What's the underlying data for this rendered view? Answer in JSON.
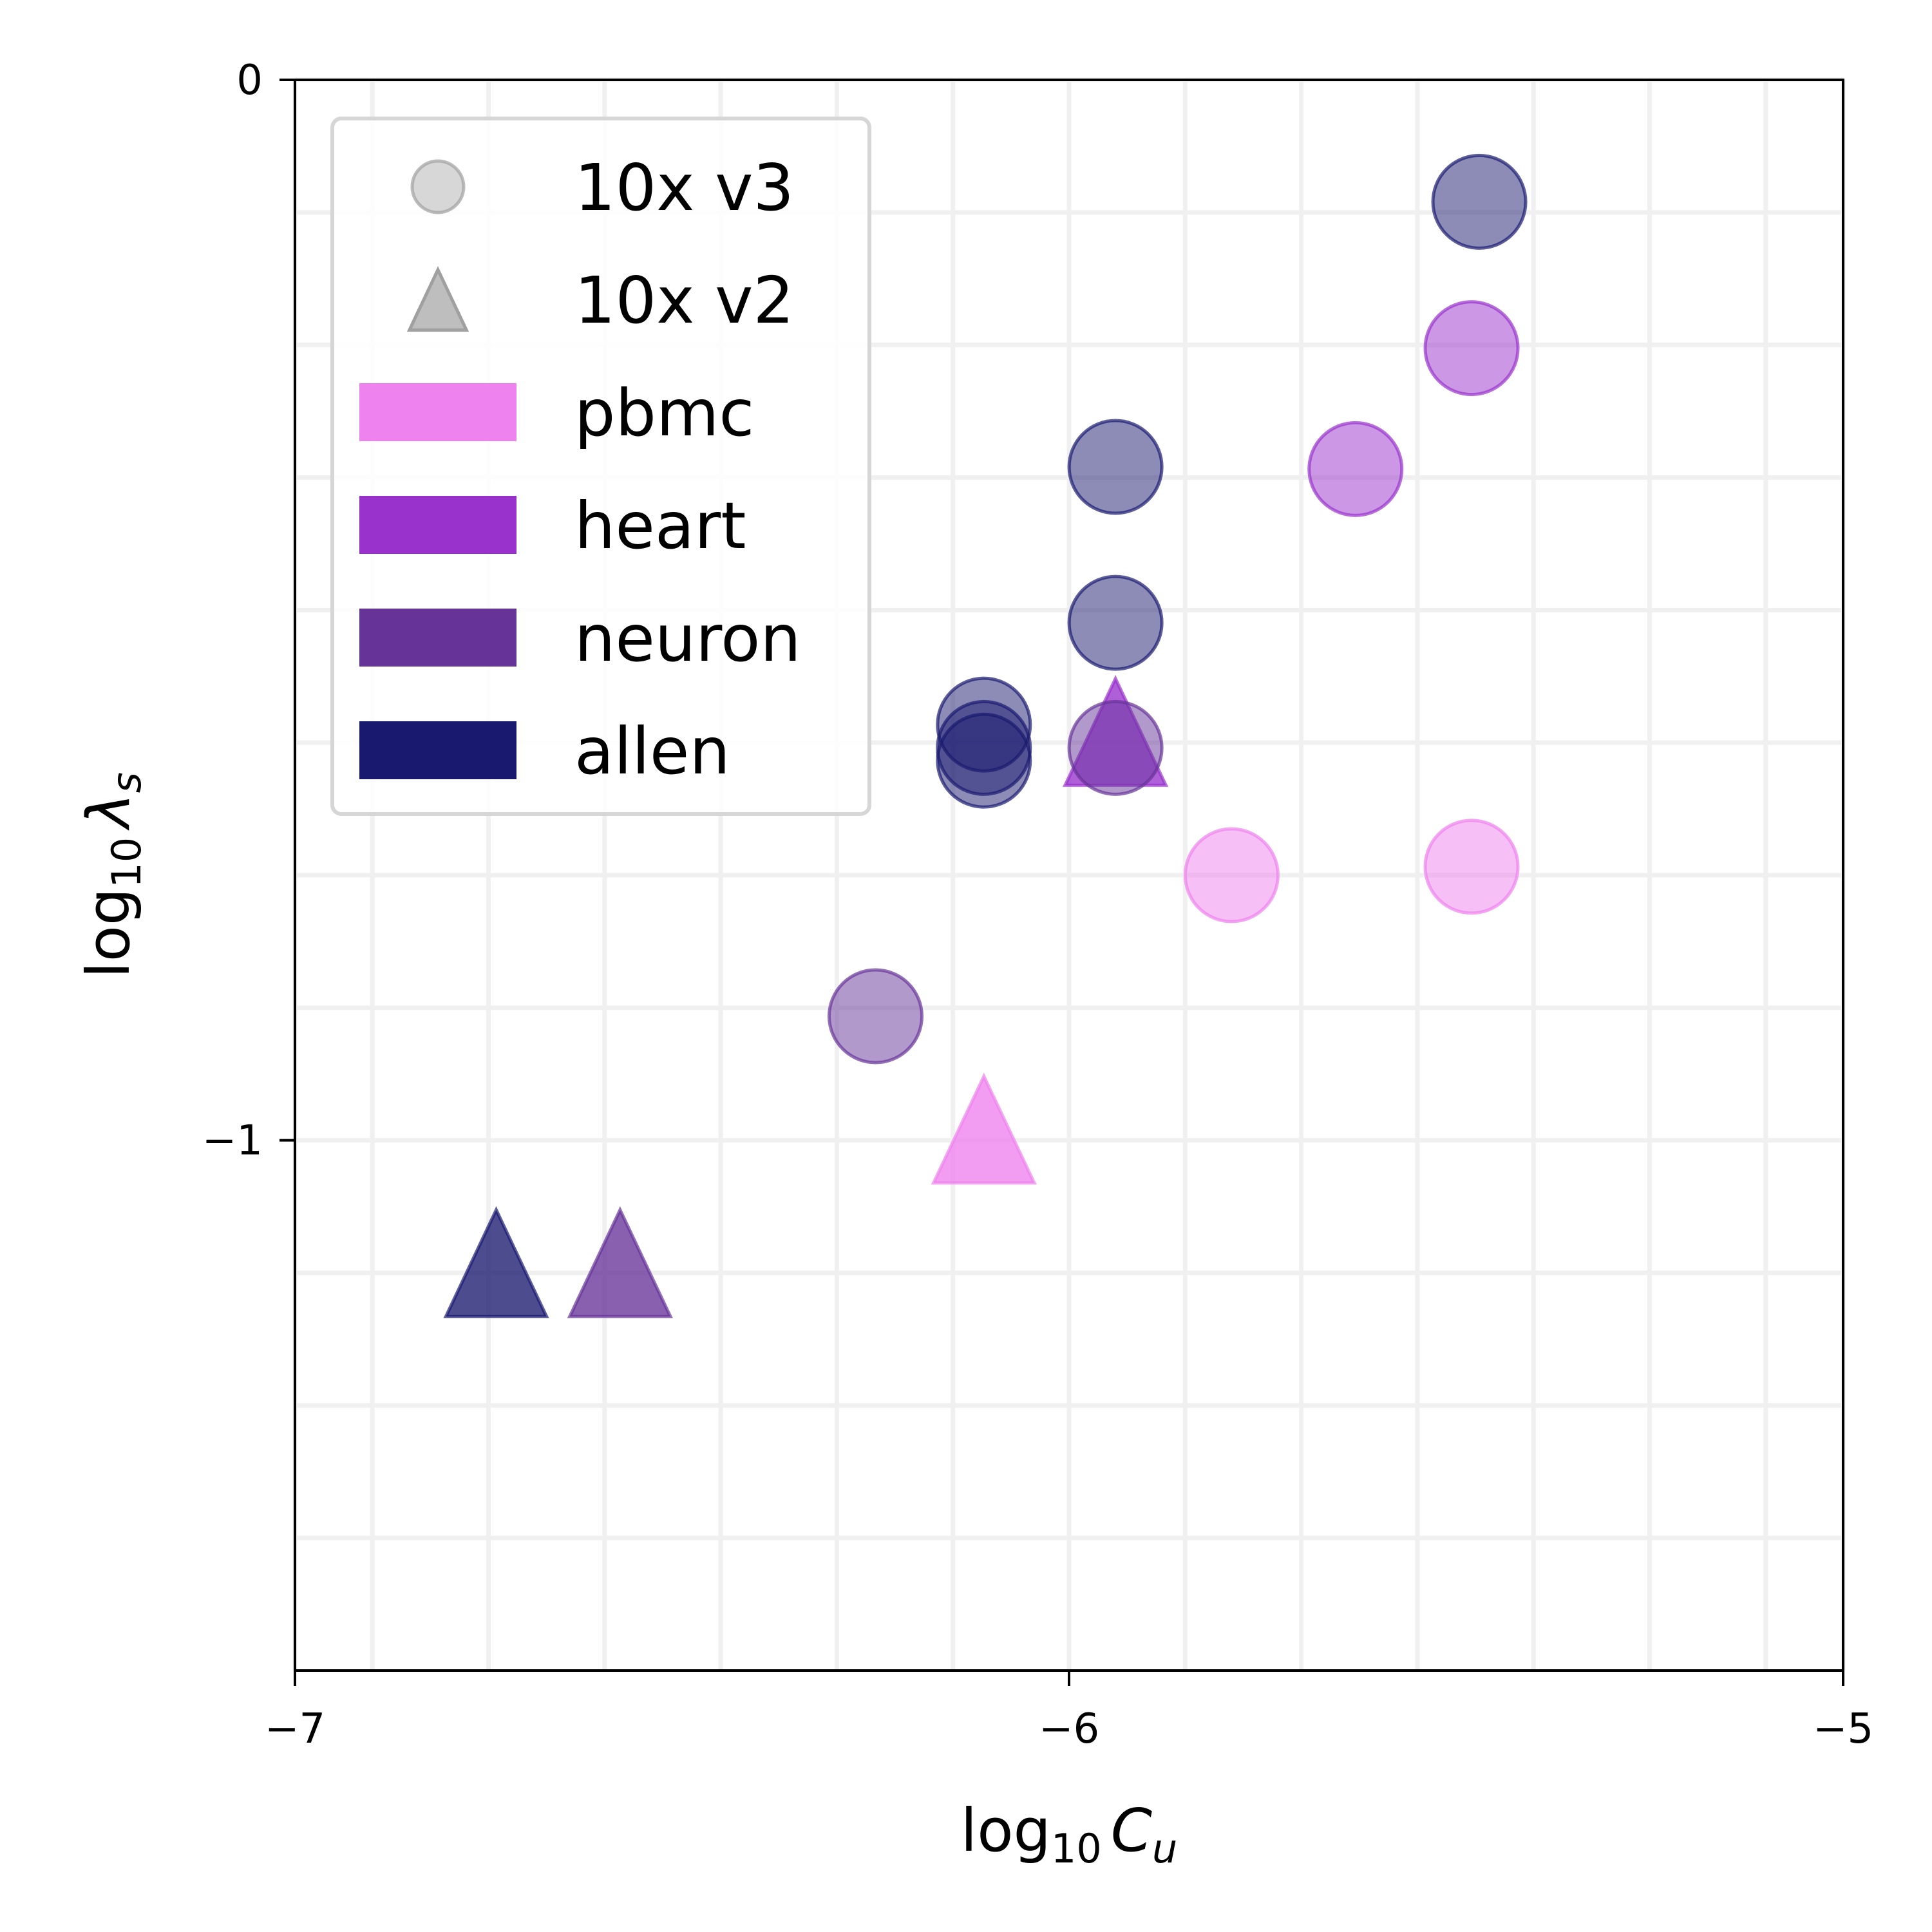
{
  "chart_data": {
    "type": "scatter",
    "title": "",
    "xlabel": {
      "base": "log",
      "sub": "10",
      "symbol": "C",
      "symbol_sub": "u"
    },
    "ylabel": {
      "base": "log",
      "sub": "10",
      "symbol": "λ",
      "symbol_sub": "s"
    },
    "xlim": [
      -7,
      -5
    ],
    "ylim": [
      -1.5,
      0
    ],
    "x_ticks": [
      {
        "value": -7,
        "label": "−7"
      },
      {
        "value": -6,
        "label": "−6"
      },
      {
        "value": -5,
        "label": "−5"
      }
    ],
    "y_ticks": [
      {
        "value": 0,
        "label": "0"
      },
      {
        "value": -1,
        "label": "−1"
      }
    ],
    "x_minor_grid": [
      -6.9,
      -6.75,
      -6.6,
      -6.45,
      -6.3,
      -6.15,
      -5.85,
      -5.7,
      -5.55,
      -5.4,
      -5.25,
      -5.1
    ],
    "y_minor_grid": [
      -0.125,
      -0.25,
      -0.375,
      -0.5,
      -0.625,
      -0.75,
      -0.875,
      -1.125,
      -1.25,
      -1.375
    ],
    "grid": true,
    "legend_position": "top-left",
    "legend": {
      "markers": [
        {
          "shape": "circle",
          "label": "10x v3"
        },
        {
          "shape": "triangle",
          "label": "10x v2"
        }
      ],
      "datasets": [
        {
          "name": "pbmc",
          "color": "#ee82ee"
        },
        {
          "name": "heart",
          "color": "#9932cc"
        },
        {
          "name": "neuron",
          "color": "#663399"
        },
        {
          "name": "allen",
          "color": "#191970"
        }
      ]
    },
    "points": [
      {
        "dataset": "pbmc",
        "chemistry": "10x v3",
        "x": -5.79,
        "y": -0.75
      },
      {
        "dataset": "pbmc",
        "chemistry": "10x v3",
        "x": -5.48,
        "y": -0.742
      },
      {
        "dataset": "pbmc",
        "chemistry": "10x v2",
        "x": -6.11,
        "y": -1.0
      },
      {
        "dataset": "heart",
        "chemistry": "10x v3",
        "x": -5.63,
        "y": -0.367
      },
      {
        "dataset": "heart",
        "chemistry": "10x v3",
        "x": -5.48,
        "y": -0.253
      },
      {
        "dataset": "heart",
        "chemistry": "10x v2",
        "x": -5.94,
        "y": -0.625
      },
      {
        "dataset": "neuron",
        "chemistry": "10x v3",
        "x": -6.25,
        "y": -0.883
      },
      {
        "dataset": "neuron",
        "chemistry": "10x v3",
        "x": -5.94,
        "y": -0.63
      },
      {
        "dataset": "neuron",
        "chemistry": "10x v2",
        "x": -6.58,
        "y": -1.126
      },
      {
        "dataset": "allen",
        "chemistry": "10x v3",
        "x": -6.11,
        "y": -0.608
      },
      {
        "dataset": "allen",
        "chemistry": "10x v3",
        "x": -6.11,
        "y": -0.63
      },
      {
        "dataset": "allen",
        "chemistry": "10x v3",
        "x": -6.11,
        "y": -0.642
      },
      {
        "dataset": "allen",
        "chemistry": "10x v3",
        "x": -5.94,
        "y": -0.512
      },
      {
        "dataset": "allen",
        "chemistry": "10x v3",
        "x": -5.94,
        "y": -0.365
      },
      {
        "dataset": "allen",
        "chemistry": "10x v3",
        "x": -5.47,
        "y": -0.115
      },
      {
        "dataset": "allen",
        "chemistry": "10x v2",
        "x": -6.74,
        "y": -1.126
      }
    ]
  }
}
